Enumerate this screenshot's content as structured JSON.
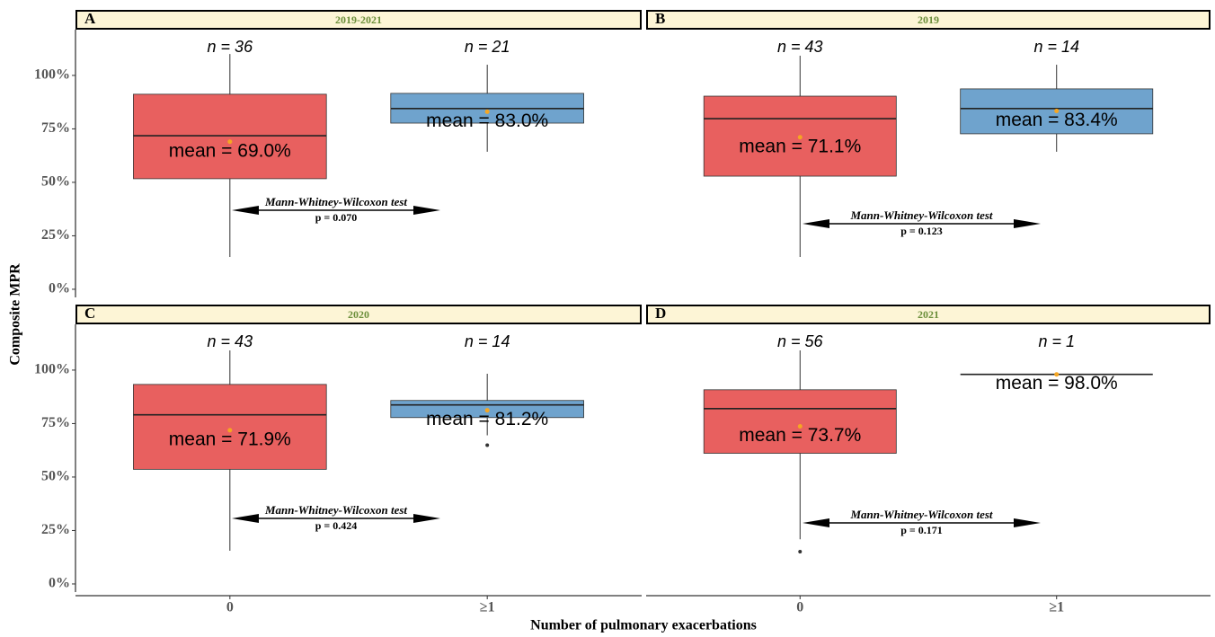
{
  "axis_labels": {
    "x": "Number of pulmonary exacerbations",
    "y": "Composite MPR"
  },
  "chart_data": [
    {
      "type": "box",
      "label": "A",
      "title": "2019-2021",
      "categories": [
        "0",
        "≥1"
      ],
      "show_x_labels": false,
      "ylim": [
        -3.8,
        121.4
      ],
      "yticks": [
        {
          "value": 0,
          "label": "0%"
        },
        {
          "value": 25,
          "label": "25%"
        },
        {
          "value": 50,
          "label": "50%"
        },
        {
          "value": 75,
          "label": "75%"
        },
        {
          "value": 100,
          "label": "100%"
        }
      ],
      "boxes": [
        {
          "n_label": "n = 36",
          "color": "#e8605f",
          "min": 15.1,
          "q1": 51.7,
          "median": 71.8,
          "q3": 91.2,
          "max": 110,
          "mean": 69.0,
          "mean_label": "mean = 69.0%",
          "outliers": []
        },
        {
          "n_label": "n = 21",
          "color": "#6fa3cd",
          "min": 64.3,
          "q1": 77.7,
          "median": 84.5,
          "q3": 91.6,
          "max": 105,
          "mean": 83.0,
          "mean_label": "mean = 83.0%",
          "outliers": []
        }
      ],
      "test": "Mann-Whitney-Wilcoxon test",
      "p_label": "p = 0.070"
    },
    {
      "type": "box",
      "label": "B",
      "title": "2019",
      "categories": [
        "0",
        "≥1"
      ],
      "show_x_labels": false,
      "ylim": [
        -3.8,
        121.4
      ],
      "boxes": [
        {
          "n_label": "n = 43",
          "color": "#e8605f",
          "min": 15.1,
          "q1": 52.9,
          "median": 79.8,
          "q3": 90.3,
          "max": 109.2,
          "mean": 71.1,
          "mean_label": "mean = 71.1%",
          "outliers": []
        },
        {
          "n_label": "n = 14",
          "color": "#6fa3cd",
          "min": 64.3,
          "q1": 72.7,
          "median": 84.5,
          "q3": 93.7,
          "max": 105,
          "mean": 83.4,
          "mean_label": "mean = 83.4%",
          "outliers": []
        }
      ],
      "test": "Mann-Whitney-Wilcoxon test",
      "p_label": "p = 0.123"
    },
    {
      "type": "box",
      "label": "C",
      "title": "2020",
      "categories": [
        "0",
        "≥1"
      ],
      "show_x_labels": true,
      "ylim": [
        -3.8,
        121.4
      ],
      "yticks": [
        {
          "value": 0,
          "label": "0%"
        },
        {
          "value": 25,
          "label": "25%"
        },
        {
          "value": 50,
          "label": "50%"
        },
        {
          "value": 75,
          "label": "75%"
        },
        {
          "value": 100,
          "label": "100%"
        }
      ],
      "boxes": [
        {
          "n_label": "n = 43",
          "color": "#e8605f",
          "min": 15.5,
          "q1": 53.6,
          "median": 79.1,
          "q3": 93.3,
          "max": 109.2,
          "mean": 71.9,
          "mean_label": "mean = 71.9%",
          "outliers": []
        },
        {
          "n_label": "n = 14",
          "color": "#6fa3cd",
          "min": 69.5,
          "q1": 77.8,
          "median": 83.7,
          "q3": 85.8,
          "max": 98.3,
          "mean": 81.2,
          "mean_label": "mean = 81.2%",
          "outliers": [
            64.9
          ]
        }
      ],
      "test": "Mann-Whitney-Wilcoxon test",
      "p_label": "p = 0.424"
    },
    {
      "type": "box",
      "label": "D",
      "title": "2021",
      "categories": [
        "0",
        "≥1"
      ],
      "show_x_labels": true,
      "ylim": [
        -3.8,
        121.4
      ],
      "boxes": [
        {
          "n_label": "n = 56",
          "color": "#e8605f",
          "min": 20.9,
          "q1": 61.1,
          "median": 82.0,
          "q3": 90.8,
          "max": 109.2,
          "mean": 73.7,
          "mean_label": "mean = 73.7%",
          "outliers": [
            15.1
          ]
        },
        {
          "n_label": "n = 1",
          "color": "#6fa3cd",
          "min": 98.0,
          "q1": 98.0,
          "median": 98.0,
          "q3": 98.0,
          "max": 98.0,
          "mean": 98.0,
          "mean_label": "mean = 98.0%",
          "outliers": []
        }
      ],
      "test": "Mann-Whitney-Wilcoxon test",
      "p_label": "p = 0.171"
    }
  ]
}
